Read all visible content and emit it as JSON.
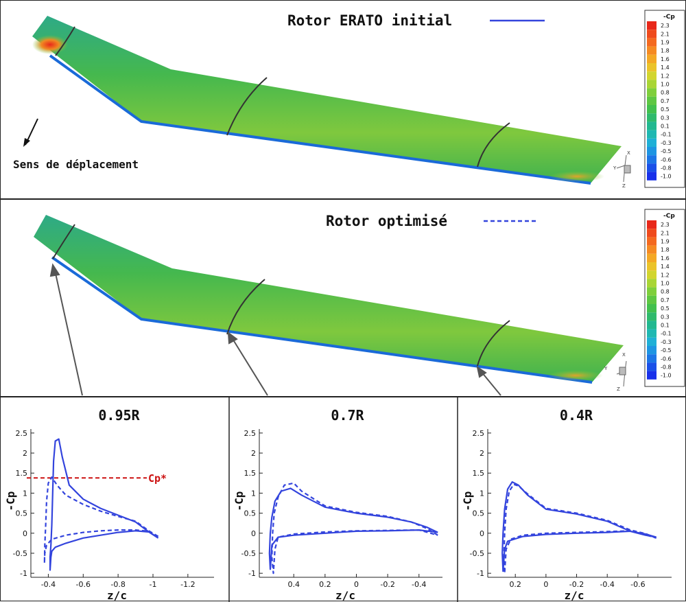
{
  "top": {
    "title": "Rotor ERATO initial",
    "direction_label": "Sens de déplacement"
  },
  "middle": {
    "title": "Rotor optimisé"
  },
  "colorbar": {
    "title": "-Cp",
    "levels": [
      "2.3",
      "2.1",
      "1.9",
      "1.8",
      "1.6",
      "1.4",
      "1.2",
      "1.0",
      "0.8",
      "0.7",
      "0.5",
      "0.3",
      "0.1",
      "-0.1",
      "-0.3",
      "-0.5",
      "-0.6",
      "-0.8",
      "-1.0"
    ],
    "colors": [
      "#e8281a",
      "#ef4a1c",
      "#f4691f",
      "#f58a22",
      "#f4a824",
      "#ebc329",
      "#d2d52e",
      "#a9d535",
      "#7fcf3c",
      "#5ec743",
      "#42c04e",
      "#2fba6c",
      "#22b890",
      "#1fb8b2",
      "#1fb0d6",
      "#1e95e2",
      "#1c75e6",
      "#1a50e8",
      "#1830ea"
    ]
  },
  "axis_triad": {
    "x": "X",
    "y": "Y",
    "z": "Z"
  },
  "chart_data": [
    {
      "type": "line",
      "title": "0.95R",
      "xlabel": "z/c",
      "ylabel": "-Cp",
      "xlim": [
        -0.3,
        -1.35
      ],
      "ylim": [
        -1.1,
        2.6
      ],
      "xticks": [
        "-0.4",
        "-0.6",
        "-0.8",
        "-1",
        "-1.2"
      ],
      "xtick_values": [
        -0.4,
        -0.6,
        -0.8,
        -1.0,
        -1.2
      ],
      "yticks": [
        "2.5",
        "2",
        "1.5",
        "1",
        "0.5",
        "0",
        "-0.5",
        "-1"
      ],
      "ytick_values": [
        2.5,
        2,
        1.5,
        1,
        0.5,
        0,
        -0.5,
        -1
      ],
      "reference_line": {
        "label": "Cp*",
        "value": 1.38,
        "color": "#cc1111"
      },
      "series": [
        {
          "name": "Rotor ERATO initial",
          "style": "solid",
          "x": [
            -1.03,
            -0.98,
            -0.9,
            -0.8,
            -0.7,
            -0.6,
            -0.52,
            -0.48,
            -0.46,
            -0.44,
            -0.43,
            -0.425,
            -0.42,
            -0.415,
            -0.41,
            -0.41,
            -0.41,
            -0.415,
            -0.42,
            -0.44,
            -0.5,
            -0.6,
            -0.7,
            -0.8,
            -0.9,
            -0.98,
            -1.03
          ],
          "y": [
            -0.12,
            0.02,
            0.28,
            0.45,
            0.62,
            0.85,
            1.2,
            1.9,
            2.35,
            2.3,
            1.8,
            1.0,
            0.2,
            -0.3,
            -0.6,
            -0.85,
            -0.92,
            -0.6,
            -0.45,
            -0.35,
            -0.25,
            -0.12,
            -0.05,
            0.02,
            0.06,
            0.03,
            -0.12
          ]
        },
        {
          "name": "Rotor optimisé",
          "style": "dashed",
          "x": [
            -1.03,
            -0.98,
            -0.9,
            -0.8,
            -0.7,
            -0.6,
            -0.5,
            -0.45,
            -0.42,
            -0.4,
            -0.39,
            -0.385,
            -0.38,
            -0.378,
            -0.38,
            -0.39,
            -0.42,
            -0.5,
            -0.6,
            -0.7,
            -0.8,
            -0.9,
            -0.98,
            -1.03
          ],
          "y": [
            -0.08,
            0.05,
            0.3,
            0.42,
            0.55,
            0.72,
            0.95,
            1.2,
            1.4,
            1.25,
            0.8,
            0.2,
            -0.3,
            -0.75,
            -0.5,
            -0.3,
            -0.15,
            -0.05,
            0.02,
            0.06,
            0.08,
            0.08,
            0.05,
            -0.08
          ]
        }
      ]
    },
    {
      "type": "line",
      "title": "0.7R",
      "xlabel": "z/c",
      "ylabel": "-Cp",
      "xlim": [
        0.62,
        -0.55
      ],
      "ylim": [
        -1.1,
        2.6
      ],
      "xticks": [
        "0.4",
        "0.2",
        "0",
        "-0.2",
        "-0.4"
      ],
      "xtick_values": [
        0.4,
        0.2,
        0,
        -0.2,
        -0.4
      ],
      "yticks": [
        "2.5",
        "2",
        "1.5",
        "1",
        "0.5",
        "0",
        "-0.5",
        "-1"
      ],
      "ytick_values": [
        2.5,
        2,
        1.5,
        1,
        0.5,
        0,
        -0.5,
        -1
      ],
      "series": [
        {
          "name": "Rotor ERATO initial",
          "style": "solid",
          "x": [
            -0.52,
            -0.45,
            -0.35,
            -0.2,
            0.0,
            0.2,
            0.35,
            0.42,
            0.48,
            0.52,
            0.54,
            0.55,
            0.555,
            0.55,
            0.54,
            0.5,
            0.4,
            0.2,
            0.0,
            -0.2,
            -0.4,
            -0.52
          ],
          "y": [
            0.02,
            0.15,
            0.28,
            0.4,
            0.5,
            0.65,
            0.95,
            1.12,
            1.05,
            0.8,
            0.4,
            0.0,
            -0.5,
            -0.9,
            -0.3,
            -0.1,
            -0.05,
            0.0,
            0.05,
            0.06,
            0.08,
            0.02
          ]
        },
        {
          "name": "Rotor optimisé",
          "style": "dashed",
          "x": [
            -0.52,
            -0.45,
            -0.35,
            -0.2,
            0.0,
            0.2,
            0.35,
            0.4,
            0.46,
            0.5,
            0.525,
            0.535,
            0.54,
            0.53,
            0.52,
            0.5,
            0.4,
            0.2,
            0.0,
            -0.2,
            -0.4,
            -0.52
          ],
          "y": [
            -0.05,
            0.12,
            0.28,
            0.42,
            0.52,
            0.68,
            1.05,
            1.25,
            1.2,
            0.9,
            0.5,
            0.0,
            -0.6,
            -1.0,
            -0.4,
            -0.1,
            -0.02,
            0.03,
            0.06,
            0.07,
            0.08,
            -0.05
          ]
        }
      ]
    },
    {
      "type": "line",
      "title": "0.4R",
      "xlabel": "z/c",
      "ylabel": "-Cp",
      "xlim": [
        0.38,
        -0.82
      ],
      "ylim": [
        -1.1,
        2.6
      ],
      "xticks": [
        "0.2",
        "0",
        "-0.2",
        "-0.4",
        "-0.6"
      ],
      "xtick_values": [
        0.2,
        0,
        -0.2,
        -0.4,
        -0.6
      ],
      "yticks": [
        "2.5",
        "2",
        "1.5",
        "1",
        "0.5",
        "0",
        "-0.5",
        "-1"
      ],
      "ytick_values": [
        2.5,
        2,
        1.5,
        1,
        0.5,
        0,
        -0.5,
        -1
      ],
      "series": [
        {
          "name": "Rotor ERATO initial",
          "style": "solid",
          "x": [
            -0.72,
            -0.65,
            -0.55,
            -0.4,
            -0.2,
            0.0,
            0.12,
            0.18,
            0.22,
            0.25,
            0.27,
            0.28,
            0.285,
            0.28,
            0.27,
            0.25,
            0.15,
            0.0,
            -0.2,
            -0.4,
            -0.55,
            -0.65,
            -0.72
          ],
          "y": [
            -0.1,
            -0.02,
            0.05,
            0.3,
            0.48,
            0.6,
            0.95,
            1.2,
            1.28,
            1.1,
            0.6,
            0.0,
            -0.5,
            -0.95,
            -0.4,
            -0.2,
            -0.08,
            -0.03,
            0.0,
            0.02,
            0.05,
            -0.05,
            -0.1
          ]
        },
        {
          "name": "Rotor optimisé",
          "style": "dashed",
          "x": [
            -0.72,
            -0.65,
            -0.55,
            -0.4,
            -0.2,
            0.0,
            0.12,
            0.18,
            0.21,
            0.24,
            0.26,
            0.27,
            0.275,
            0.27,
            0.26,
            0.23,
            0.15,
            0.0,
            -0.2,
            -0.4,
            -0.55,
            -0.65,
            -0.72
          ],
          "y": [
            -0.12,
            -0.01,
            0.08,
            0.32,
            0.5,
            0.62,
            0.98,
            1.18,
            1.22,
            1.05,
            0.6,
            0.0,
            -0.6,
            -1.0,
            -0.4,
            -0.15,
            -0.05,
            0.0,
            0.02,
            0.04,
            0.06,
            -0.04,
            -0.12
          ]
        }
      ]
    }
  ]
}
